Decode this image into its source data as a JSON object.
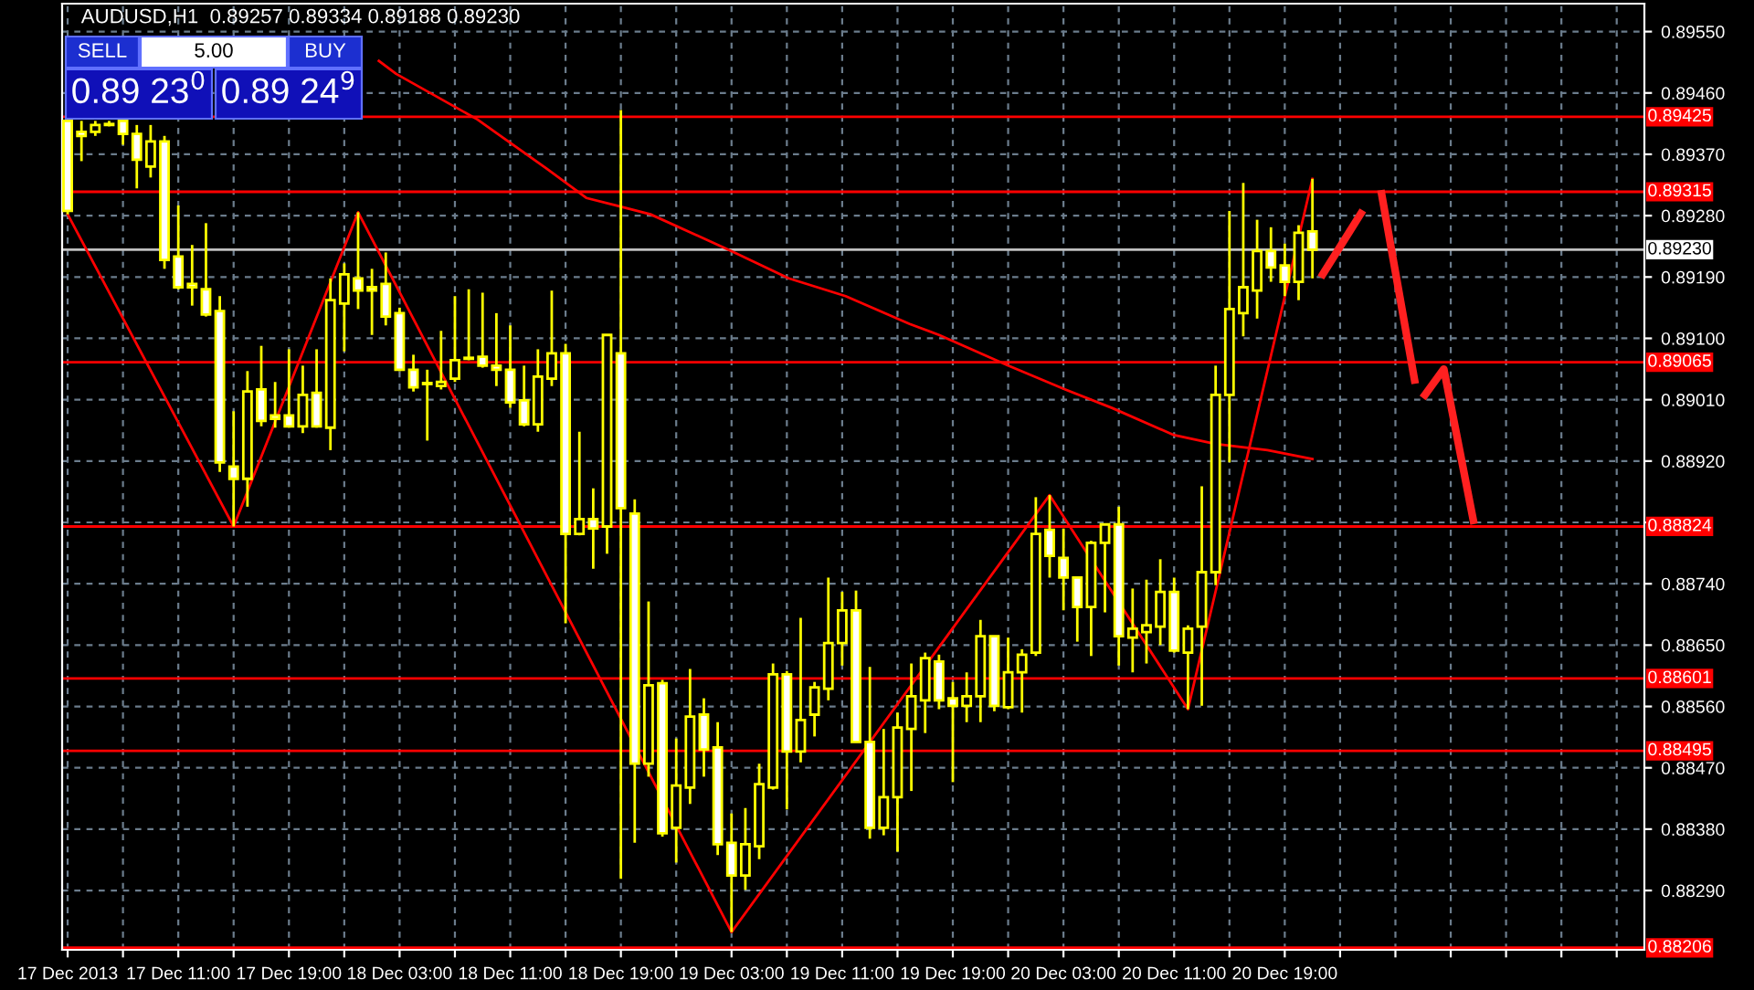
{
  "chart_data": {
    "type": "candlestick",
    "title": "AUDUSD,H1  0.89257 0.89334 0.89188 0.89230",
    "color": "#ffff00",
    "annotations": [
      "SELL",
      "5.00",
      "BUY",
      "0.89 23$^{0}$",
      "0.89 24$^{9}$"
    ],
    "x": [
      "2013-12-17T03:00",
      "2013-12-17T04:00",
      "2013-12-17T05:00",
      "2013-12-17T06:00",
      "2013-12-17T07:00",
      "2013-12-17T08:00",
      "2013-12-17T09:00",
      "2013-12-17T10:00",
      "2013-12-17T11:00",
      "2013-12-17T12:00",
      "2013-12-17T13:00",
      "2013-12-17T14:00",
      "2013-12-17T15:00",
      "2013-12-17T16:00",
      "2013-12-17T17:00",
      "2013-12-17T18:00",
      "2013-12-17T19:00",
      "2013-12-17T20:00",
      "2013-12-17T21:00",
      "2013-12-17T22:00",
      "2013-12-17T23:00",
      "2013-12-18T00:00",
      "2013-12-18T01:00",
      "2013-12-18T02:00",
      "2013-12-18T03:00",
      "2013-12-18T04:00",
      "2013-12-18T05:00",
      "2013-12-18T06:00",
      "2013-12-18T07:00",
      "2013-12-18T08:00",
      "2013-12-18T09:00",
      "2013-12-18T10:00",
      "2013-12-18T11:00",
      "2013-12-18T12:00",
      "2013-12-18T13:00",
      "2013-12-18T14:00",
      "2013-12-18T15:00",
      "2013-12-18T16:00",
      "2013-12-18T17:00",
      "2013-12-18T18:00",
      "2013-12-18T19:00",
      "2013-12-18T20:00",
      "2013-12-18T21:00",
      "2013-12-18T22:00",
      "2013-12-18T23:00",
      "2013-12-19T00:00",
      "2013-12-19T01:00",
      "2013-12-19T02:00",
      "2013-12-19T03:00",
      "2013-12-19T04:00",
      "2013-12-19T05:00",
      "2013-12-19T06:00",
      "2013-12-19T07:00",
      "2013-12-19T08:00",
      "2013-12-19T09:00",
      "2013-12-19T10:00",
      "2013-12-19T11:00",
      "2013-12-19T12:00",
      "2013-12-19T13:00",
      "2013-12-19T14:00",
      "2013-12-19T15:00",
      "2013-12-19T16:00",
      "2013-12-19T17:00",
      "2013-12-19T18:00",
      "2013-12-19T19:00",
      "2013-12-19T20:00",
      "2013-12-19T21:00",
      "2013-12-19T22:00",
      "2013-12-19T23:00",
      "2013-12-20T00:00",
      "2013-12-20T01:00",
      "2013-12-20T02:00",
      "2013-12-20T03:00",
      "2013-12-20T04:00",
      "2013-12-20T05:00",
      "2013-12-20T06:00",
      "2013-12-20T07:00",
      "2013-12-20T08:00",
      "2013-12-20T09:00",
      "2013-12-20T10:00",
      "2013-12-20T11:00",
      "2013-12-20T12:00",
      "2013-12-20T13:00",
      "2013-12-20T14:00",
      "2013-12-20T15:00",
      "2013-12-20T16:00",
      "2013-12-20T17:00",
      "2013-12-20T18:00",
      "2013-12-20T19:00",
      "2013-12-20T20:00",
      "2013-12-20T21:00"
    ],
    "ohlc": [
      [
        0.89419,
        0.89419,
        0.89282,
        0.89287
      ],
      [
        0.89403,
        0.89419,
        0.8936,
        0.89397
      ],
      [
        0.89403,
        0.89419,
        0.89397,
        0.89413
      ],
      [
        0.89413,
        0.89419,
        0.89411,
        0.89413
      ],
      [
        0.89419,
        0.89419,
        0.89384,
        0.894
      ],
      [
        0.894,
        0.89413,
        0.8932,
        0.89362
      ],
      [
        0.89352,
        0.89413,
        0.89336,
        0.89389
      ],
      [
        0.89389,
        0.89397,
        0.89202,
        0.89215
      ],
      [
        0.8922,
        0.89295,
        0.89172,
        0.89175
      ],
      [
        0.8918,
        0.89237,
        0.89148,
        0.89175
      ],
      [
        0.89172,
        0.89269,
        0.89132,
        0.89135
      ],
      [
        0.8914,
        0.89162,
        0.88904,
        0.88918
      ],
      [
        0.88912,
        0.88993,
        0.88824,
        0.88894
      ],
      [
        0.88894,
        0.89052,
        0.88853,
        0.89022
      ],
      [
        0.89025,
        0.89089,
        0.88971,
        0.88979
      ],
      [
        0.88987,
        0.89036,
        0.88969,
        0.88982
      ],
      [
        0.88987,
        0.89084,
        0.88969,
        0.88971
      ],
      [
        0.88971,
        0.8906,
        0.88961,
        0.89017
      ],
      [
        0.8902,
        0.89084,
        0.88969,
        0.88971
      ],
      [
        0.88969,
        0.89188,
        0.88936,
        0.89156
      ],
      [
        0.89151,
        0.8921,
        0.89081,
        0.89194
      ],
      [
        0.89188,
        0.89285,
        0.89143,
        0.8917
      ],
      [
        0.89175,
        0.89202,
        0.89105,
        0.8917
      ],
      [
        0.8918,
        0.89226,
        0.89119,
        0.89132
      ],
      [
        0.89137,
        0.89145,
        0.89052,
        0.89054
      ],
      [
        0.89054,
        0.89076,
        0.89022,
        0.89028
      ],
      [
        0.89033,
        0.89054,
        0.8895,
        0.89033
      ],
      [
        0.8903,
        0.89111,
        0.89025,
        0.89036
      ],
      [
        0.89041,
        0.89162,
        0.89036,
        0.89068
      ],
      [
        0.8907,
        0.89172,
        0.89068,
        0.8907
      ],
      [
        0.89073,
        0.89167,
        0.89057,
        0.8906
      ],
      [
        0.8906,
        0.89137,
        0.8903,
        0.89054
      ],
      [
        0.89054,
        0.89119,
        0.88998,
        0.89006
      ],
      [
        0.89009,
        0.8906,
        0.88971,
        0.88974
      ],
      [
        0.88974,
        0.89084,
        0.88963,
        0.89044
      ],
      [
        0.89041,
        0.8917,
        0.8903,
        0.89078
      ],
      [
        0.89078,
        0.89092,
        0.88682,
        0.88813
      ],
      [
        0.88813,
        0.88963,
        0.88811,
        0.88835
      ],
      [
        0.88835,
        0.8888,
        0.88762,
        0.88821
      ],
      [
        0.88824,
        0.89105,
        0.88784,
        0.89105
      ],
      [
        0.89078,
        0.89435,
        0.88307,
        0.88851
      ],
      [
        0.88843,
        0.88864,
        0.8836,
        0.88476
      ],
      [
        0.88476,
        0.88714,
        0.88457,
        0.88591
      ],
      [
        0.88594,
        0.88599,
        0.88369,
        0.88374
      ],
      [
        0.88382,
        0.88513,
        0.88331,
        0.88444
      ],
      [
        0.88441,
        0.88615,
        0.88417,
        0.88545
      ],
      [
        0.88548,
        0.88572,
        0.88457,
        0.88497
      ],
      [
        0.885,
        0.88537,
        0.88342,
        0.88358
      ],
      [
        0.8836,
        0.88403,
        0.88229,
        0.88312
      ],
      [
        0.88312,
        0.88411,
        0.88291,
        0.88358
      ],
      [
        0.88355,
        0.88476,
        0.88336,
        0.88446
      ],
      [
        0.88441,
        0.88623,
        0.88438,
        0.88607
      ],
      [
        0.88607,
        0.88612,
        0.88409,
        0.88494
      ],
      [
        0.88494,
        0.8869,
        0.88478,
        0.8854
      ],
      [
        0.88548,
        0.88596,
        0.88516,
        0.88588
      ],
      [
        0.88586,
        0.88749,
        0.88569,
        0.88653
      ],
      [
        0.88653,
        0.88728,
        0.8862,
        0.88701
      ],
      [
        0.88701,
        0.8873,
        0.88508,
        0.88508
      ],
      [
        0.88508,
        0.88618,
        0.88366,
        0.88382
      ],
      [
        0.88382,
        0.88527,
        0.88371,
        0.88427
      ],
      [
        0.88427,
        0.88551,
        0.88347,
        0.88529
      ],
      [
        0.88527,
        0.88623,
        0.88436,
        0.88575
      ],
      [
        0.88569,
        0.88639,
        0.88521,
        0.88631
      ],
      [
        0.88626,
        0.88636,
        0.88556,
        0.88569
      ],
      [
        0.88572,
        0.88596,
        0.88449,
        0.88561
      ],
      [
        0.88561,
        0.8861,
        0.88537,
        0.88575
      ],
      [
        0.88575,
        0.88687,
        0.88537,
        0.88663
      ],
      [
        0.88663,
        0.88663,
        0.88553,
        0.88561
      ],
      [
        0.88559,
        0.88661,
        0.88556,
        0.8861
      ],
      [
        0.8861,
        0.88644,
        0.88551,
        0.88636
      ],
      [
        0.88639,
        0.88867,
        0.88634,
        0.88813
      ],
      [
        0.88819,
        0.8887,
        0.88749,
        0.88781
      ],
      [
        0.88778,
        0.88821,
        0.88701,
        0.88749
      ],
      [
        0.88749,
        0.88749,
        0.88655,
        0.88706
      ],
      [
        0.88706,
        0.88803,
        0.88634,
        0.888
      ],
      [
        0.888,
        0.88827,
        0.88698,
        0.88827
      ],
      [
        0.88827,
        0.88853,
        0.8862,
        0.88663
      ],
      [
        0.88661,
        0.88733,
        0.8861,
        0.88674
      ],
      [
        0.88669,
        0.88746,
        0.88623,
        0.88679
      ],
      [
        0.88677,
        0.88776,
        0.8865,
        0.88728
      ],
      [
        0.88728,
        0.88749,
        0.88639,
        0.88642
      ],
      [
        0.88639,
        0.88679,
        0.88556,
        0.88674
      ],
      [
        0.88677,
        0.88883,
        0.88561,
        0.88757
      ],
      [
        0.88757,
        0.8906,
        0.88738,
        0.89017
      ],
      [
        0.89017,
        0.89287,
        0.88918,
        0.89143
      ],
      [
        0.89137,
        0.89328,
        0.89103,
        0.89175
      ],
      [
        0.8917,
        0.89274,
        0.89129,
        0.89228
      ],
      [
        0.89228,
        0.89263,
        0.89183,
        0.89204
      ],
      [
        0.89207,
        0.89239,
        0.89162,
        0.89183
      ],
      [
        0.89183,
        0.89266,
        0.89156,
        0.89255
      ],
      [
        0.89257,
        0.89334,
        0.89188,
        0.8923
      ]
    ],
    "series": [
      {
        "type": "line",
        "color": "#ff0000",
        "x": [
          "2013-12-18T01:30",
          "2013-12-18T02:45",
          "2013-12-18T08:38",
          "2013-12-18T09:53",
          "2013-12-18T13:38",
          "2013-12-18T16:30",
          "2013-12-18T18:38",
          "2013-12-18T21:08",
          "2013-12-19T03:00",
          "2013-12-19T07:08",
          "2013-12-19T11:15",
          "2013-12-19T15:53",
          "2013-12-19T18:00",
          "2013-12-19T23:00",
          "2013-12-20T03:08",
          "2013-12-20T06:30",
          "2013-12-20T11:00",
          "2013-12-20T14:00",
          "2013-12-20T17:45",
          "2013-12-20T21:00"
        ],
        "values": [
          0.89507,
          0.89488,
          0.89421,
          0.89403,
          0.89349,
          0.89306,
          0.89295,
          0.89282,
          0.89228,
          0.89188,
          0.89162,
          0.89121,
          0.89105,
          0.8906,
          0.89025,
          0.88998,
          0.88958,
          0.88945,
          0.88936,
          0.88923
        ]
      },
      {
        "type": "line",
        "color": "#ff0000",
        "x": [
          "2013-12-17T03:00",
          "2013-12-17T15:00",
          "2013-12-18T00:00",
          "2013-12-19T03:00",
          "2013-12-20T02:00",
          "2013-12-20T12:00",
          "2013-12-20T21:00"
        ],
        "values": [
          0.89282,
          0.88824,
          0.89285,
          0.88229,
          0.8887,
          0.88556,
          0.89334
        ]
      },
      {
        "type": "line",
        "color": "#ff2020",
        "x": [
          "2013-12-20T21:45",
          "2013-12-21T00:30",
          "2013-12-21T01:15",
          "2013-12-21T02:00",
          "2013-12-21T04:23",
          "2013-12-21T04:45",
          "2013-12-21T05:08",
          "2013-12-21T06:30",
          "2013-12-21T08:38"
        ],
        "values": [
          0.89194,
          0.89283,
          null,
          0.89312,
          0.89039,
          null,
          0.89017,
          0.89055,
          0.88833
        ]
      }
    ],
    "ref_lines": [
      {
        "axis": "y",
        "value": 0.89425,
        "label": "0.89425",
        "color": "#ff0000"
      },
      {
        "axis": "y",
        "value": 0.89315,
        "label": "0.89315",
        "color": "#ff0000"
      },
      {
        "axis": "y",
        "value": 0.8923,
        "label": "0.89230",
        "color": "#c0c0c0"
      },
      {
        "axis": "y",
        "value": 0.89065,
        "label": "0.89065",
        "color": "#ff0000"
      },
      {
        "axis": "y",
        "value": 0.88824,
        "label": "0.88824",
        "color": "#ff0000"
      },
      {
        "axis": "y",
        "value": 0.88601,
        "label": "0.88601",
        "color": "#ff0000"
      },
      {
        "axis": "y",
        "value": 0.88495,
        "label": "0.88495",
        "color": "#ff0000"
      },
      {
        "axis": "y",
        "value": 0.88206,
        "label": "0.88206",
        "color": "#ff0000"
      }
    ],
    "xlim": [
      "2013-12-17T02:36",
      "2013-12-21T21:00"
    ],
    "ylim": [
      0.88203,
      0.89591
    ],
    "xticks": [
      {
        "value": "2013-12-17T03:00",
        "label": "17 Dec 2013"
      },
      {
        "value": "2013-12-17T07:00",
        "label": null
      },
      {
        "value": "2013-12-17T11:00",
        "label": "17 Dec 11:00"
      },
      {
        "value": "2013-12-17T15:00",
        "label": null
      },
      {
        "value": "2013-12-17T19:00",
        "label": "17 Dec 19:00"
      },
      {
        "value": "2013-12-17T23:00",
        "label": null
      },
      {
        "value": "2013-12-18T03:00",
        "label": "18 Dec 03:00"
      },
      {
        "value": "2013-12-18T07:00",
        "label": null
      },
      {
        "value": "2013-12-18T11:00",
        "label": "18 Dec 11:00"
      },
      {
        "value": "2013-12-18T15:00",
        "label": null
      },
      {
        "value": "2013-12-18T19:00",
        "label": "18 Dec 19:00"
      },
      {
        "value": "2013-12-18T23:00",
        "label": null
      },
      {
        "value": "2013-12-19T03:00",
        "label": "19 Dec 03:00"
      },
      {
        "value": "2013-12-19T07:00",
        "label": null
      },
      {
        "value": "2013-12-19T11:00",
        "label": "19 Dec 11:00"
      },
      {
        "value": "2013-12-19T15:00",
        "label": null
      },
      {
        "value": "2013-12-19T19:00",
        "label": "19 Dec 19:00"
      },
      {
        "value": "2013-12-19T23:00",
        "label": null
      },
      {
        "value": "2013-12-20T03:00",
        "label": "20 Dec 03:00"
      },
      {
        "value": "2013-12-20T07:00",
        "label": null
      },
      {
        "value": "2013-12-20T11:00",
        "label": "20 Dec 11:00"
      },
      {
        "value": "2013-12-20T15:00",
        "label": null
      },
      {
        "value": "2013-12-20T19:00",
        "label": "20 Dec 19:00"
      },
      {
        "value": "2013-12-20T23:00",
        "label": null
      },
      {
        "value": "2013-12-21T03:00",
        "label": null
      },
      {
        "value": "2013-12-21T07:00",
        "label": null
      },
      {
        "value": "2013-12-21T11:00",
        "label": null
      },
      {
        "value": "2013-12-21T15:00",
        "label": null
      },
      {
        "value": "2013-12-21T19:00",
        "label": null
      }
    ],
    "yticks": [
      {
        "value": 0.8955,
        "label": "0.89550"
      },
      {
        "value": 0.8946,
        "label": "0.89460"
      },
      {
        "value": 0.8937,
        "label": "0.89370"
      },
      {
        "value": 0.8928,
        "label": "0.89280"
      },
      {
        "value": 0.8919,
        "label": "0.89190"
      },
      {
        "value": 0.891,
        "label": "0.89100"
      },
      {
        "value": 0.8901,
        "label": "0.89010"
      },
      {
        "value": 0.8892,
        "label": "0.88920"
      },
      {
        "value": 0.8883,
        "label": null
      },
      {
        "value": 0.8874,
        "label": "0.88740"
      },
      {
        "value": 0.8865,
        "label": "0.88650"
      },
      {
        "value": 0.8856,
        "label": "0.88560"
      },
      {
        "value": 0.8847,
        "label": "0.88470"
      },
      {
        "value": 0.8838,
        "label": "0.88380"
      },
      {
        "value": 0.8829,
        "label": "0.88290"
      }
    ],
    "grid": true
  }
}
